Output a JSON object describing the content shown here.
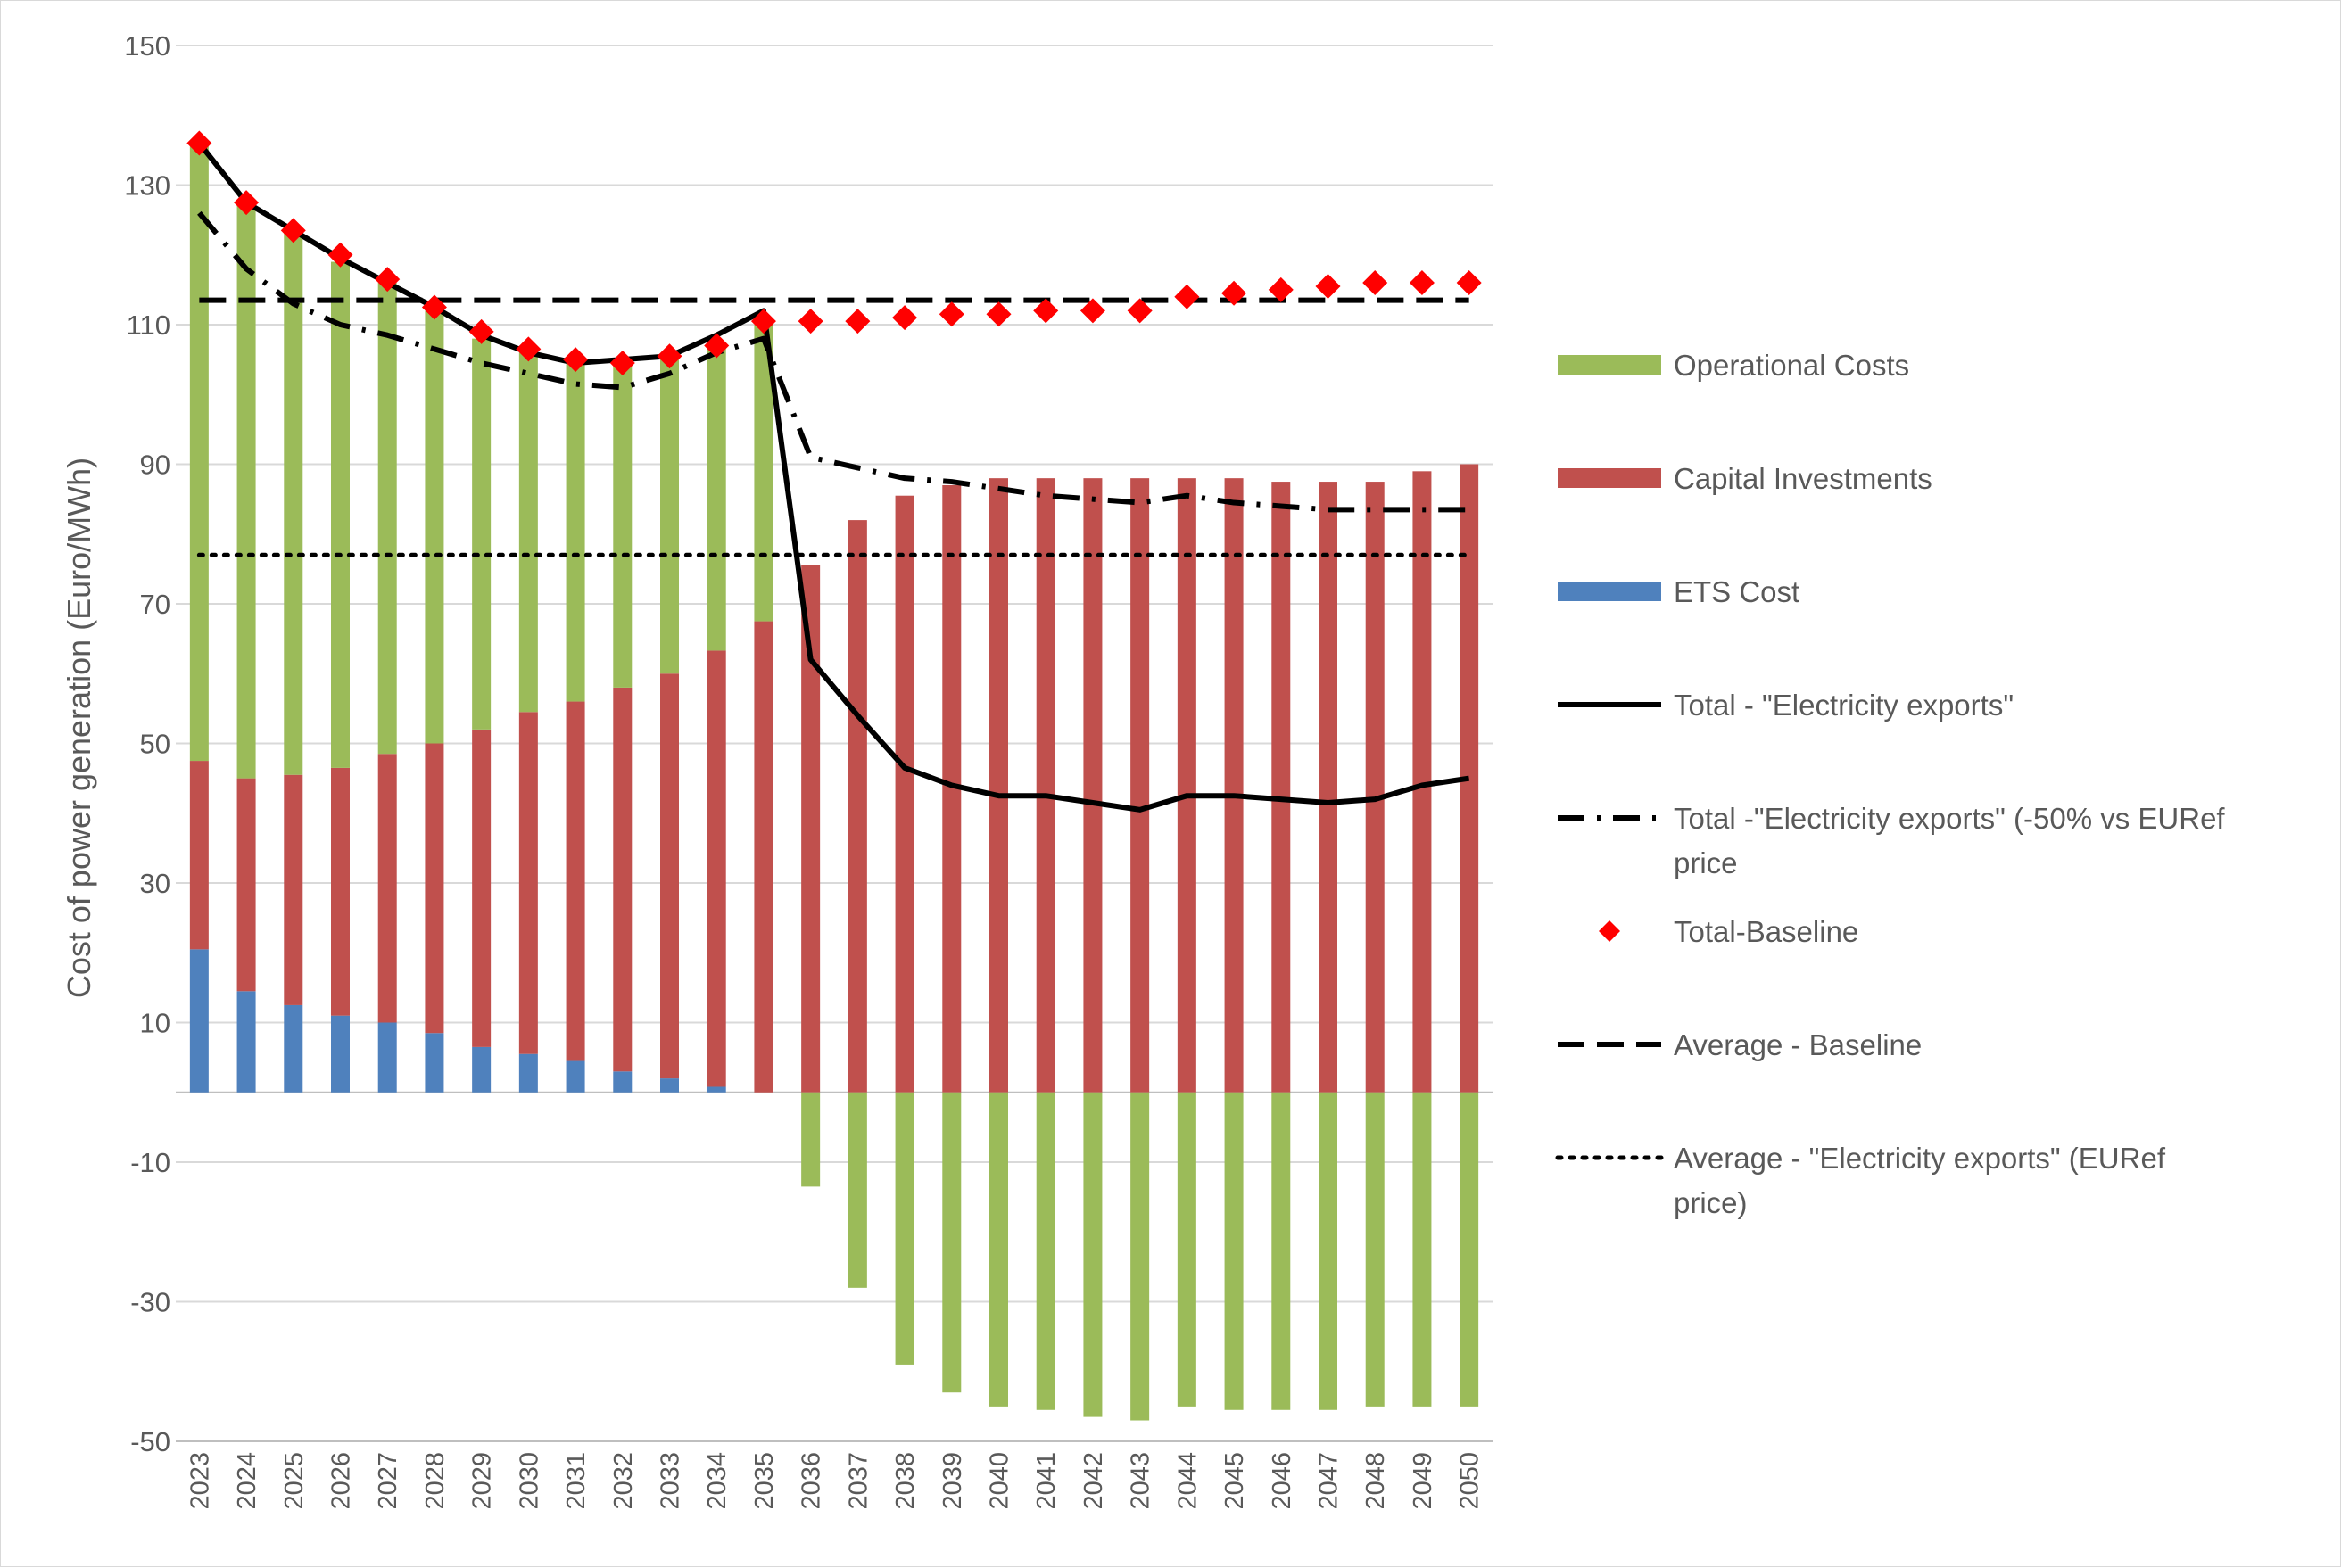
{
  "chart_data": {
    "type": "bar",
    "stacked": true,
    "ylabel": "Cost of power generation (Euro/MWh)",
    "xlabel": "",
    "ylim": [
      -50,
      150
    ],
    "ytick_step": 20,
    "yticks": [
      150,
      130,
      110,
      90,
      70,
      50,
      30,
      10,
      -10,
      -30,
      -50
    ],
    "grid": "horizontal",
    "legend_position": "right",
    "categories": [
      "2023",
      "2024",
      "2025",
      "2026",
      "2027",
      "2028",
      "2029",
      "2030",
      "2031",
      "2032",
      "2033",
      "2034",
      "2035",
      "2036",
      "2037",
      "2038",
      "2039",
      "2040",
      "2041",
      "2042",
      "2043",
      "2044",
      "2045",
      "2046",
      "2047",
      "2048",
      "2049",
      "2050"
    ],
    "series": [
      {
        "name": "Operational Costs",
        "kind": "bar",
        "color": "#9BBB59",
        "values": [
          88.5,
          82.5,
          78,
          72.5,
          67.5,
          62,
          56,
          51.5,
          49,
          47,
          45.5,
          43.5,
          42.5,
          -13.5,
          -28,
          -39,
          -43,
          -45,
          -45.5,
          -46.5,
          -47,
          -45,
          -45.5,
          -45.5,
          -45.5,
          -45,
          -45,
          -45
        ]
      },
      {
        "name": "Capital Investments",
        "kind": "bar",
        "color": "#C0504D",
        "values": [
          27,
          30.5,
          33,
          35.5,
          38.5,
          41.5,
          45.5,
          49,
          51.5,
          55,
          58,
          62.5,
          67.5,
          75.5,
          82,
          85.5,
          87,
          88,
          88,
          88,
          88,
          88,
          88,
          87.5,
          87.5,
          87.5,
          89,
          90
        ]
      },
      {
        "name": "ETS Cost",
        "kind": "bar",
        "color": "#4F81BD",
        "values": [
          20.5,
          14.5,
          12.5,
          11,
          10,
          8.5,
          6.5,
          5.5,
          4.5,
          3,
          2,
          0.8,
          0,
          0,
          0,
          0,
          0,
          0,
          0,
          0,
          0,
          0,
          0,
          0,
          0,
          0,
          0,
          0
        ]
      },
      {
        "name": "Total - \"Electricity exports\"",
        "kind": "line",
        "style": "solid",
        "color": "#000000",
        "values": [
          136,
          127.5,
          123.5,
          119.5,
          116,
          112.5,
          108.5,
          106,
          104.5,
          105,
          105.5,
          108.5,
          112,
          62,
          54,
          46.5,
          44,
          42.5,
          42.5,
          41.5,
          40.5,
          42.5,
          42.5,
          42,
          41.5,
          42,
          44,
          45
        ]
      },
      {
        "name": "Total -\"Electricity exports\" (-50% vs EURef price",
        "kind": "line",
        "style": "dash-dot",
        "color": "#000000",
        "values": [
          126,
          118,
          113,
          110,
          108.5,
          106.5,
          104.5,
          103,
          101.5,
          101,
          103,
          106,
          108,
          91,
          89.5,
          88,
          87.5,
          86.5,
          85.5,
          85,
          84.5,
          85.5,
          84.5,
          84,
          83.5,
          83.5,
          83.5,
          83.5
        ]
      },
      {
        "name": "Total-Baseline",
        "kind": "marker",
        "marker": "diamond",
        "color": "#FF0000",
        "values": [
          136,
          127.5,
          123.5,
          120,
          116.5,
          112.5,
          109,
          106.5,
          105,
          104.5,
          105.5,
          107,
          110.5,
          110.5,
          110.5,
          111,
          111.5,
          111.5,
          112,
          112,
          112,
          114,
          114.5,
          115,
          115.5,
          116,
          116,
          116
        ]
      },
      {
        "name": "Average - Baseline",
        "kind": "line",
        "style": "dashed",
        "color": "#000000",
        "values": [
          113.5,
          113.5,
          113.5,
          113.5,
          113.5,
          113.5,
          113.5,
          113.5,
          113.5,
          113.5,
          113.5,
          113.5,
          113.5,
          113.5,
          113.5,
          113.5,
          113.5,
          113.5,
          113.5,
          113.5,
          113.5,
          113.5,
          113.5,
          113.5,
          113.5,
          113.5,
          113.5,
          113.5
        ]
      },
      {
        "name": "Average - \"Electricity exports\" (EURef price)",
        "kind": "line",
        "style": "dotted",
        "color": "#000000",
        "values": [
          77,
          77,
          77,
          77,
          77,
          77,
          77,
          77,
          77,
          77,
          77,
          77,
          77,
          77,
          77,
          77,
          77,
          77,
          77,
          77,
          77,
          77,
          77,
          77,
          77,
          77,
          77,
          77
        ]
      }
    ],
    "legend": [
      {
        "label": "Operational Costs",
        "symbol": "bar",
        "color": "#9BBB59"
      },
      {
        "label": "Capital Investments",
        "symbol": "bar",
        "color": "#C0504D"
      },
      {
        "label": "ETS Cost",
        "symbol": "bar",
        "color": "#4F81BD"
      },
      {
        "label": "Total - \"Electricity exports\"",
        "symbol": "solid-line",
        "color": "#000000"
      },
      {
        "label": "Total -\"Electricity exports\" (-50% vs EURef",
        "label_line2": "price",
        "symbol": "dash-dot-line",
        "color": "#000000"
      },
      {
        "label": "Total-Baseline",
        "symbol": "diamond",
        "color": "#FF0000"
      },
      {
        "label": "Average - Baseline",
        "symbol": "dashed-line",
        "color": "#000000"
      },
      {
        "label": "Average - \"Electricity exports\" (EURef",
        "label_line2": "price)",
        "symbol": "dotted-line",
        "color": "#000000"
      }
    ]
  }
}
